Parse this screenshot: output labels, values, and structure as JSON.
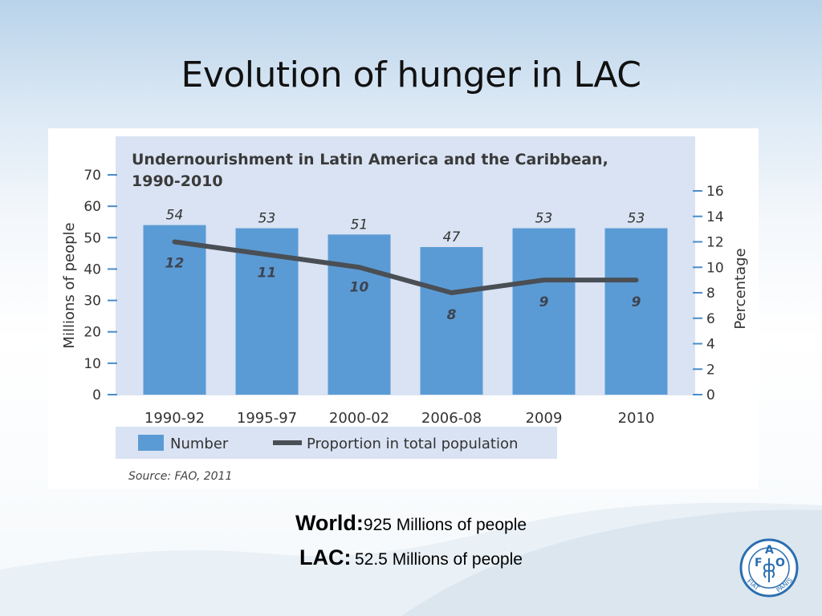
{
  "slide": {
    "title": "Evolution of hunger in LAC"
  },
  "chart_data": {
    "type": "bar",
    "title_lines": [
      "Undernourishment in Latin America and the Caribbean,",
      "1990-2010"
    ],
    "categories": [
      "1990-92",
      "1995-97",
      "2000-02",
      "2006-08",
      "2009",
      "2010"
    ],
    "series": [
      {
        "name": "Number",
        "type": "bar",
        "axis": "left",
        "values": [
          54,
          53,
          51,
          47,
          53,
          53
        ]
      },
      {
        "name": "Proportion in total population",
        "type": "line",
        "axis": "right",
        "values": [
          12,
          11,
          10,
          8,
          9,
          9
        ]
      }
    ],
    "ylabel": "Millions of people",
    "ylim": [
      0,
      70
    ],
    "yticks": [
      0,
      10,
      20,
      30,
      40,
      50,
      60,
      70
    ],
    "y2label": "Percentage",
    "y2lim": [
      0,
      16
    ],
    "y2ticks": [
      0,
      2,
      4,
      6,
      8,
      10,
      12,
      14,
      16
    ],
    "legend_position": "bottom",
    "source": "Source: FAO, 2011",
    "colors": {
      "bar": "#5b9bd5",
      "line": "#4a4f55",
      "plot_bg": "#d9e3f3",
      "axis": "#4a8cc7"
    }
  },
  "stats": {
    "world_label": "World:",
    "world_value": "925 Millions of people",
    "lac_label": "LAC:",
    "lac_value": "52.5 Millions of people"
  },
  "logo": {
    "icon": "fao-logo",
    "letters": [
      "F",
      "A",
      "O"
    ],
    "motto": "FIAT PANIS",
    "color": "#2a6eb0"
  }
}
